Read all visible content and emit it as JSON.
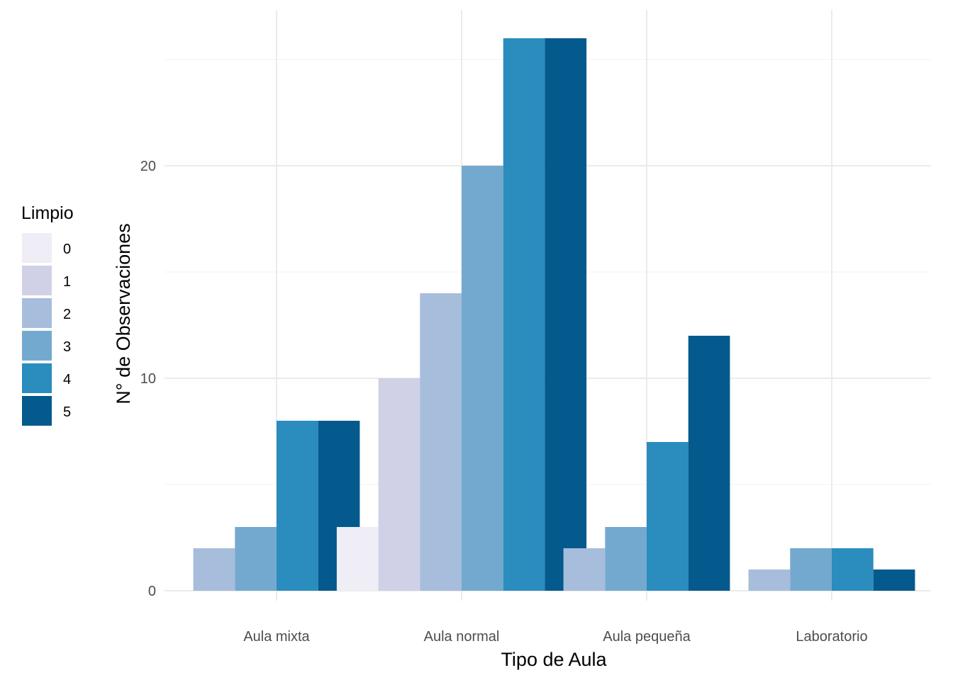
{
  "chart_data": {
    "type": "bar",
    "xlabel": "Tipo de Aula",
    "ylabel": "N° de Observaciones",
    "categories": [
      "Aula mixta",
      "Aula normal",
      "Aula pequeña",
      "Laboratorio"
    ],
    "ylim": [
      0,
      26
    ],
    "yticks": [
      0,
      10,
      20
    ],
    "grid": true,
    "legend": {
      "title": "Limpio",
      "position": "left"
    },
    "series": [
      {
        "name": "0",
        "color": "#EFEDF5",
        "values": [
          null,
          3,
          null,
          null
        ]
      },
      {
        "name": "1",
        "color": "#D0D1E6",
        "values": [
          null,
          10,
          null,
          null
        ]
      },
      {
        "name": "2",
        "color": "#A6BDDB",
        "values": [
          2,
          14,
          2,
          1
        ]
      },
      {
        "name": "3",
        "color": "#74A9CF",
        "values": [
          3,
          20,
          3,
          2
        ]
      },
      {
        "name": "4",
        "color": "#2B8CBE",
        "values": [
          8,
          26,
          7,
          2
        ]
      },
      {
        "name": "5",
        "color": "#045A8D",
        "values": [
          8,
          26,
          12,
          1
        ]
      }
    ]
  }
}
